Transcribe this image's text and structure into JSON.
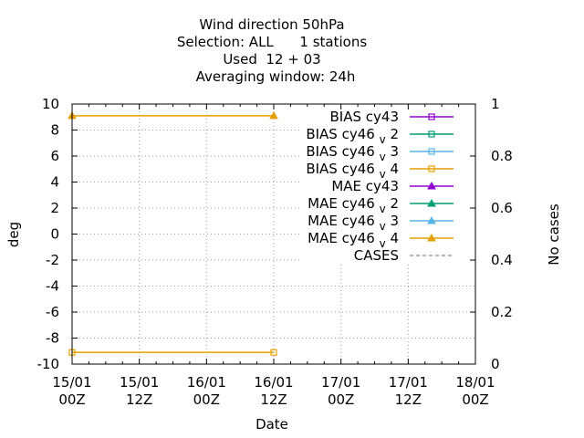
{
  "chart_data": {
    "type": "line",
    "title_lines": [
      "Wind direction 50hPa",
      "Selection: ALL      1 stations",
      "Used  12 + 03",
      "Averaging window: 24h"
    ],
    "xlabel": "Date",
    "ylabel": "deg",
    "y2label": "No cases",
    "ylim": [
      -10,
      10
    ],
    "y2lim": [
      0,
      1
    ],
    "yticks": [
      "10",
      "8",
      "6",
      "4",
      "2",
      "0",
      "-2",
      "-4",
      "-6",
      "-8",
      "-10"
    ],
    "y2ticks": [
      "1",
      "0.8",
      "0.6",
      "0.4",
      "0.2",
      "0"
    ],
    "xticks": [
      {
        "line1": "15/01",
        "line2": "00Z"
      },
      {
        "line1": "15/01",
        "line2": "12Z"
      },
      {
        "line1": "16/01",
        "line2": "00Z"
      },
      {
        "line1": "16/01",
        "line2": "12Z"
      },
      {
        "line1": "17/01",
        "line2": "00Z"
      },
      {
        "line1": "17/01",
        "line2": "12Z"
      },
      {
        "line1": "18/01",
        "line2": "00Z"
      }
    ],
    "grid": true,
    "legend_position": "top-right",
    "legend": [
      {
        "base": "BIAS cy43",
        "sub": "",
        "tail": "",
        "color": "#9400d3",
        "marker": "square"
      },
      {
        "base": "BIAS cy46",
        "sub": "v",
        "tail": "2",
        "color": "#009e73",
        "marker": "square"
      },
      {
        "base": "BIAS cy46",
        "sub": "v",
        "tail": "3",
        "color": "#56b4e9",
        "marker": "square"
      },
      {
        "base": "BIAS cy46",
        "sub": "v",
        "tail": "4",
        "color": "#e69f00",
        "marker": "square"
      },
      {
        "base": "MAE cy43",
        "sub": "",
        "tail": "",
        "color": "#9400d3",
        "marker": "triangle"
      },
      {
        "base": "MAE cy46",
        "sub": "v",
        "tail": "2",
        "color": "#009e73",
        "marker": "triangle"
      },
      {
        "base": "MAE cy46",
        "sub": "v",
        "tail": "3",
        "color": "#56b4e9",
        "marker": "triangle"
      },
      {
        "base": "MAE cy46",
        "sub": "v",
        "tail": "4",
        "color": "#e69f00",
        "marker": "triangle"
      },
      {
        "base": "CASES",
        "sub": "",
        "tail": "",
        "color": "#a0a0a0",
        "marker": "dashed"
      }
    ],
    "series": [
      {
        "name": "BIAS cy46v4",
        "color": "#e69f00",
        "marker": "square",
        "x": [
          0,
          3
        ],
        "y": [
          -9.1,
          -9.1
        ]
      },
      {
        "name": "MAE cy46v4",
        "color": "#e69f00",
        "marker": "triangle",
        "x": [
          0,
          3
        ],
        "y": [
          9.1,
          9.1
        ]
      }
    ]
  }
}
